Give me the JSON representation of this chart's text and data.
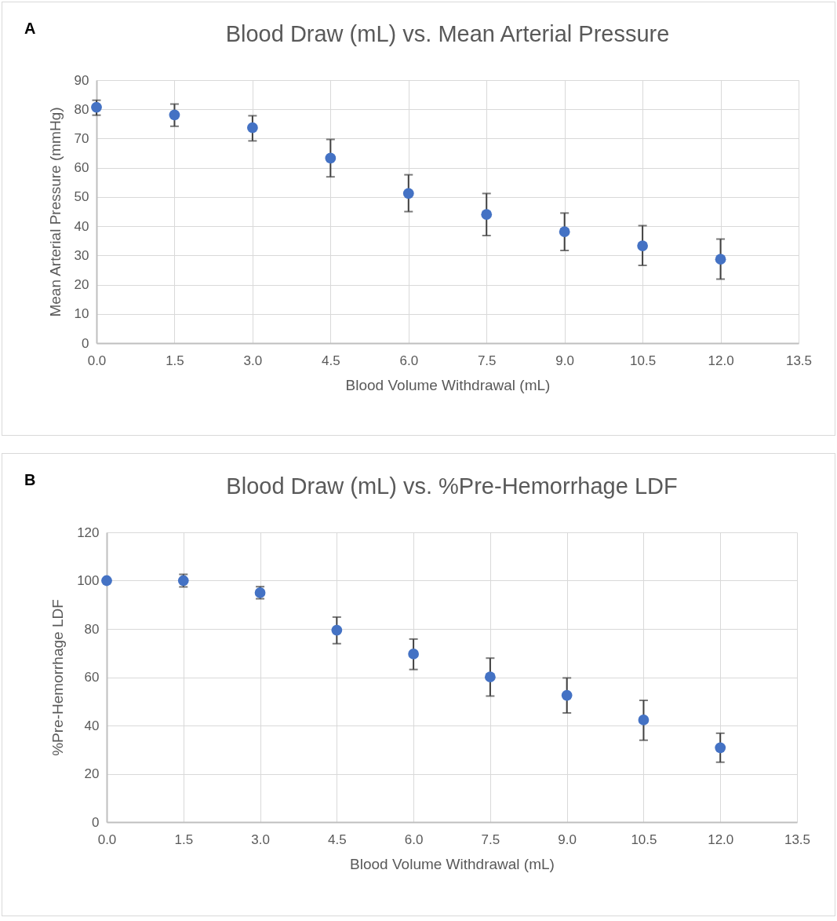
{
  "chart_data": [
    {
      "type": "scatter",
      "title": "Blood Draw (mL) vs. Mean Arterial Pressure",
      "xlabel": "Blood Volume Withdrawal (mL)",
      "ylabel": "Mean Arterial Pressure (mmHg)",
      "annotations": [
        "A"
      ],
      "x": [
        0,
        1.5,
        3,
        4.5,
        6,
        7.5,
        9,
        10.5,
        12
      ],
      "series": [
        {
          "color": "#4472c4",
          "values": [
            80.7,
            78.1,
            73.7,
            63.3,
            51.2,
            44.0,
            38.1,
            33.3,
            28.7
          ],
          "errors": [
            [
              78,
              83.1
            ],
            [
              74.2,
              81.8
            ],
            [
              69.2,
              77.8
            ],
            [
              56.9,
              69.7
            ],
            [
              45,
              57.6
            ],
            [
              36.8,
              51.2
            ],
            [
              31.7,
              44.5
            ],
            [
              26.6,
              40.2
            ],
            [
              21.9,
              35.6
            ]
          ]
        }
      ],
      "xlim": [
        0,
        13.5
      ],
      "xticks": [
        {
          "value": 0,
          "label": "0.0"
        },
        1.5,
        {
          "value": 3,
          "label": "3.0"
        },
        4.5,
        {
          "value": 6,
          "label": "6.0"
        },
        7.5,
        {
          "value": 9,
          "label": "9.0"
        },
        10.5,
        {
          "value": 12,
          "label": "12.0"
        },
        13.5
      ],
      "ylim": [
        0,
        90
      ],
      "yticks": [
        0,
        10,
        20,
        30,
        40,
        50,
        60,
        70,
        80,
        90
      ],
      "grid": true,
      "marker": "circle"
    },
    {
      "type": "scatter",
      "title": "Blood Draw (mL) vs. %Pre-Hemorrhage LDF",
      "xlabel": "Blood Volume Withdrawal (mL)",
      "ylabel": "%Pre-Hemorrhage LDF",
      "annotations": [
        "B"
      ],
      "x": [
        0,
        1.5,
        3,
        4.5,
        6,
        7.5,
        9,
        10.5,
        12
      ],
      "series": [
        {
          "color": "#4472c4",
          "values": [
            100,
            100,
            95.0,
            79.5,
            69.6,
            60.1,
            52.5,
            42.3,
            30.8
          ],
          "errors": [
            null,
            [
              97.4,
              102.6
            ],
            [
              92.5,
              97.5
            ],
            [
              73.9,
              84.9
            ],
            [
              63.2,
              75.8
            ],
            [
              52.2,
              67.9
            ],
            [
              45.2,
              59.7
            ],
            [
              33.9,
              50.4
            ],
            [
              24.8,
              36.8
            ]
          ]
        }
      ],
      "xlim": [
        0,
        13.5
      ],
      "xticks": [
        {
          "value": 0,
          "label": "0.0"
        },
        1.5,
        {
          "value": 3,
          "label": "3.0"
        },
        4.5,
        {
          "value": 6,
          "label": "6.0"
        },
        7.5,
        {
          "value": 9,
          "label": "9.0"
        },
        10.5,
        {
          "value": 12,
          "label": "12.0"
        },
        13.5
      ],
      "ylim": [
        0,
        120
      ],
      "yticks": [
        0,
        20,
        40,
        60,
        80,
        100,
        120
      ],
      "grid": true,
      "marker": "circle"
    }
  ]
}
